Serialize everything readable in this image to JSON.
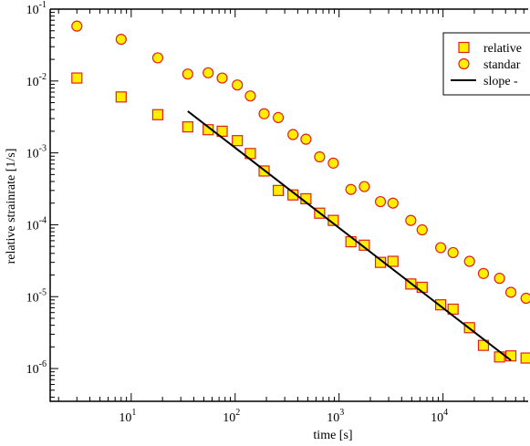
{
  "chart_data": {
    "type": "scatter",
    "title": "",
    "xlabel": "time [s]",
    "ylabel": "relative strainrate [1/s]",
    "xscale": "log",
    "yscale": "log",
    "xlim": [
      1.66,
      66000
    ],
    "ylim": [
      3.5e-07,
      0.1
    ],
    "x_major_ticks": [
      {
        "value": 10,
        "base": "10",
        "exp": "1"
      },
      {
        "value": 100,
        "base": "10",
        "exp": "2"
      },
      {
        "value": 1000,
        "base": "10",
        "exp": "3"
      },
      {
        "value": 10000,
        "base": "10",
        "exp": "4"
      }
    ],
    "y_major_ticks": [
      {
        "value": 1e-06,
        "base": "10",
        "exp": "-6"
      },
      {
        "value": 1e-05,
        "base": "10",
        "exp": "-5"
      },
      {
        "value": 0.0001,
        "base": "10",
        "exp": "-4"
      },
      {
        "value": 0.001,
        "base": "10",
        "exp": "-3"
      },
      {
        "value": 0.01,
        "base": "10",
        "exp": "-2"
      },
      {
        "value": 0.1,
        "base": "10",
        "exp": "-1"
      }
    ],
    "grid": false,
    "legend_position": "top-right",
    "series": [
      {
        "legend": "relative",
        "marker": "square",
        "fill": "#ffee00",
        "stroke": "#e0201a",
        "x": [
          3,
          8,
          18,
          35,
          55,
          75,
          105,
          140,
          190,
          260,
          360,
          480,
          650,
          880,
          1300,
          1750,
          2500,
          3300,
          4900,
          6300,
          9500,
          12500,
          18000,
          24500,
          35000,
          45000,
          63000
        ],
        "y": [
          0.011,
          0.006,
          0.0034,
          0.0023,
          0.0021,
          0.002,
          0.00148,
          0.00098,
          0.00056,
          0.0003,
          0.00026,
          0.00023,
          0.000145,
          0.000115,
          5.8e-05,
          5.2e-05,
          3e-05,
          3.1e-05,
          1.5e-05,
          1.35e-05,
          7.7e-06,
          6.7e-06,
          3.7e-06,
          2.1e-06,
          1.45e-06,
          1.5e-06,
          1.4e-06
        ]
      },
      {
        "legend": "standar",
        "marker": "circle",
        "fill": "#ffee00",
        "stroke": "#e0201a",
        "x": [
          3,
          8,
          18,
          35,
          55,
          75,
          105,
          140,
          190,
          260,
          360,
          480,
          650,
          880,
          1300,
          1750,
          2500,
          3300,
          4900,
          6300,
          9500,
          12500,
          18000,
          24500,
          35000,
          45000,
          63000
        ],
        "y": [
          0.058,
          0.038,
          0.021,
          0.0125,
          0.013,
          0.011,
          0.0088,
          0.0062,
          0.0035,
          0.0031,
          0.0018,
          0.00155,
          0.00088,
          0.00072,
          0.00031,
          0.00034,
          0.00021,
          0.0002,
          0.000115,
          8.5e-05,
          4.8e-05,
          4.1e-05,
          3.1e-05,
          2.1e-05,
          1.8e-05,
          1.15e-05,
          9.5e-06
        ]
      },
      {
        "legend": "slope -",
        "type": "line",
        "stroke": "#000000",
        "x": [
          35,
          45000
        ],
        "y": [
          0.0038,
          1.3e-06
        ]
      }
    ]
  }
}
